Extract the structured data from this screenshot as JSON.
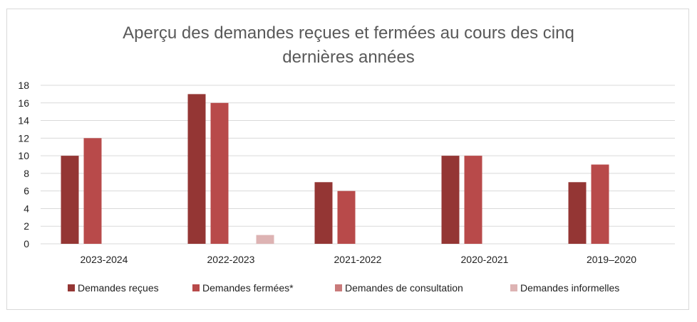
{
  "chart_data": {
    "type": "bar",
    "title_lines": [
      "Aperçu des demandes reçues et fermées au cours des cinq",
      "dernières années"
    ],
    "categories": [
      "2023-2024",
      "2022-2023",
      "2021-2022",
      "2020-2021",
      "2019–2020"
    ],
    "series": [
      {
        "name": "Demandes reçues",
        "color": "#943634",
        "values": [
          10,
          17,
          7,
          10,
          7
        ]
      },
      {
        "name": "Demandes fermées*",
        "color": "#b84a4a",
        "values": [
          12,
          16,
          6,
          10,
          9
        ]
      },
      {
        "name": "Demandes de consultation",
        "color": "#c97a7a",
        "values": [
          0,
          0,
          0,
          0,
          0
        ]
      },
      {
        "name": "Demandes informelles",
        "color": "#ddb3b3",
        "values": [
          0,
          1,
          0,
          0,
          0
        ]
      }
    ],
    "ylim": [
      0,
      18
    ],
    "yticks": [
      0,
      2,
      4,
      6,
      8,
      10,
      12,
      14,
      16,
      18
    ],
    "grid": true,
    "legend_position": "bottom"
  }
}
